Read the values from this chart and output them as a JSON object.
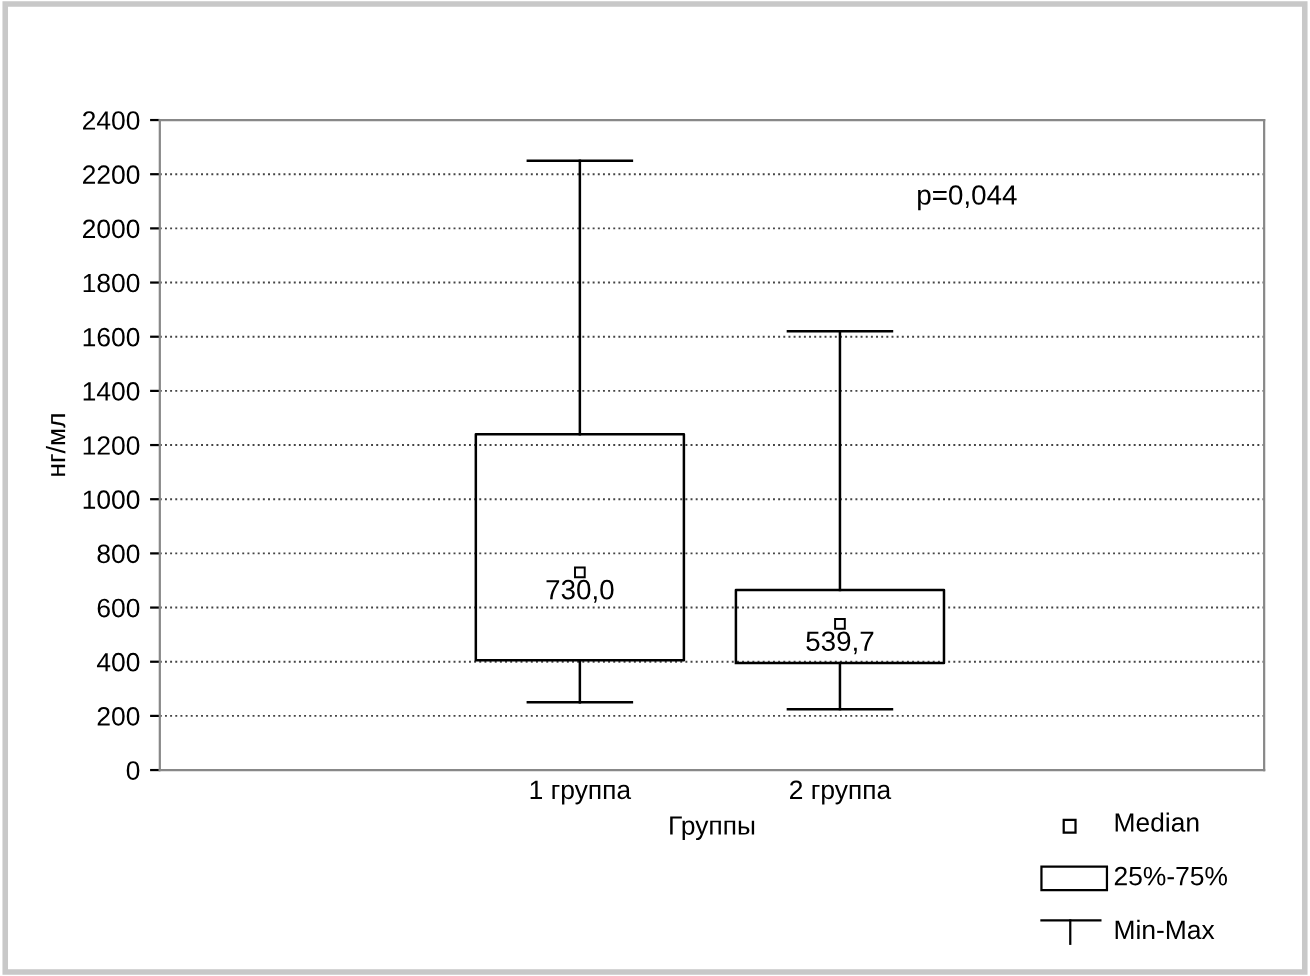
{
  "chart_data": {
    "type": "box",
    "categories": [
      "1 группа",
      "2 группа"
    ],
    "boxes": [
      {
        "low": 250,
        "q1": 405,
        "median": 730,
        "q3": 1240,
        "high": 2250
      },
      {
        "low": 225,
        "q1": 395,
        "median": 539.7,
        "q3": 665,
        "high": 1620
      }
    ],
    "xlabel": "Группы",
    "ylabel": "нг/мл",
    "ylim": [
      0,
      2400
    ],
    "yticks": [
      0,
      200,
      400,
      600,
      800,
      1000,
      1200,
      1400,
      1600,
      1800,
      2000,
      2200,
      2400
    ],
    "grid": "y",
    "annotations": [
      "p=0,044",
      "Median",
      "25%-75%",
      "Min-Max",
      "730,0",
      "539,7"
    ]
  }
}
